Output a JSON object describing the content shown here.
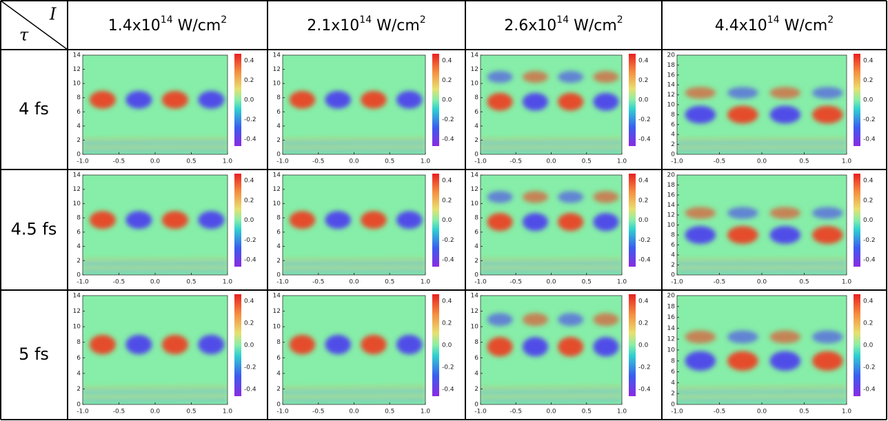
{
  "table": {
    "corner": {
      "row_symbol": "τ",
      "col_symbol": "I"
    },
    "columns": [
      {
        "base": "1.4x10",
        "exp": "14",
        "unit": " W/cm",
        "unit_exp": "2",
        "y_ticks": [
          0,
          2,
          4,
          6,
          8,
          10,
          12,
          14
        ]
      },
      {
        "base": "2.1x10",
        "exp": "14",
        "unit": " W/cm",
        "unit_exp": "2",
        "y_ticks": [
          0,
          2,
          4,
          6,
          8,
          10,
          12,
          14
        ]
      },
      {
        "base": "2.6x10",
        "exp": "14",
        "unit": " W/cm",
        "unit_exp": "2",
        "y_ticks": [
          0,
          2,
          4,
          6,
          8,
          10,
          12,
          14
        ]
      },
      {
        "base": "4.4x10",
        "exp": "14",
        "unit": " W/cm",
        "unit_exp": "2",
        "y_ticks": [
          0,
          2,
          4,
          6,
          8,
          10,
          12,
          14,
          16,
          18,
          20
        ]
      }
    ],
    "rows": [
      {
        "label": "4 fs"
      },
      {
        "label": "4.5 fs"
      },
      {
        "label": "5 fs"
      }
    ],
    "x_ticks": [
      "-1.0",
      "-0.5",
      "0.0",
      "0.5",
      "1.0"
    ],
    "colorbar_ticks": [
      "0.4",
      "0.2",
      "0.0",
      "-0.2",
      "-0.4"
    ]
  }
}
